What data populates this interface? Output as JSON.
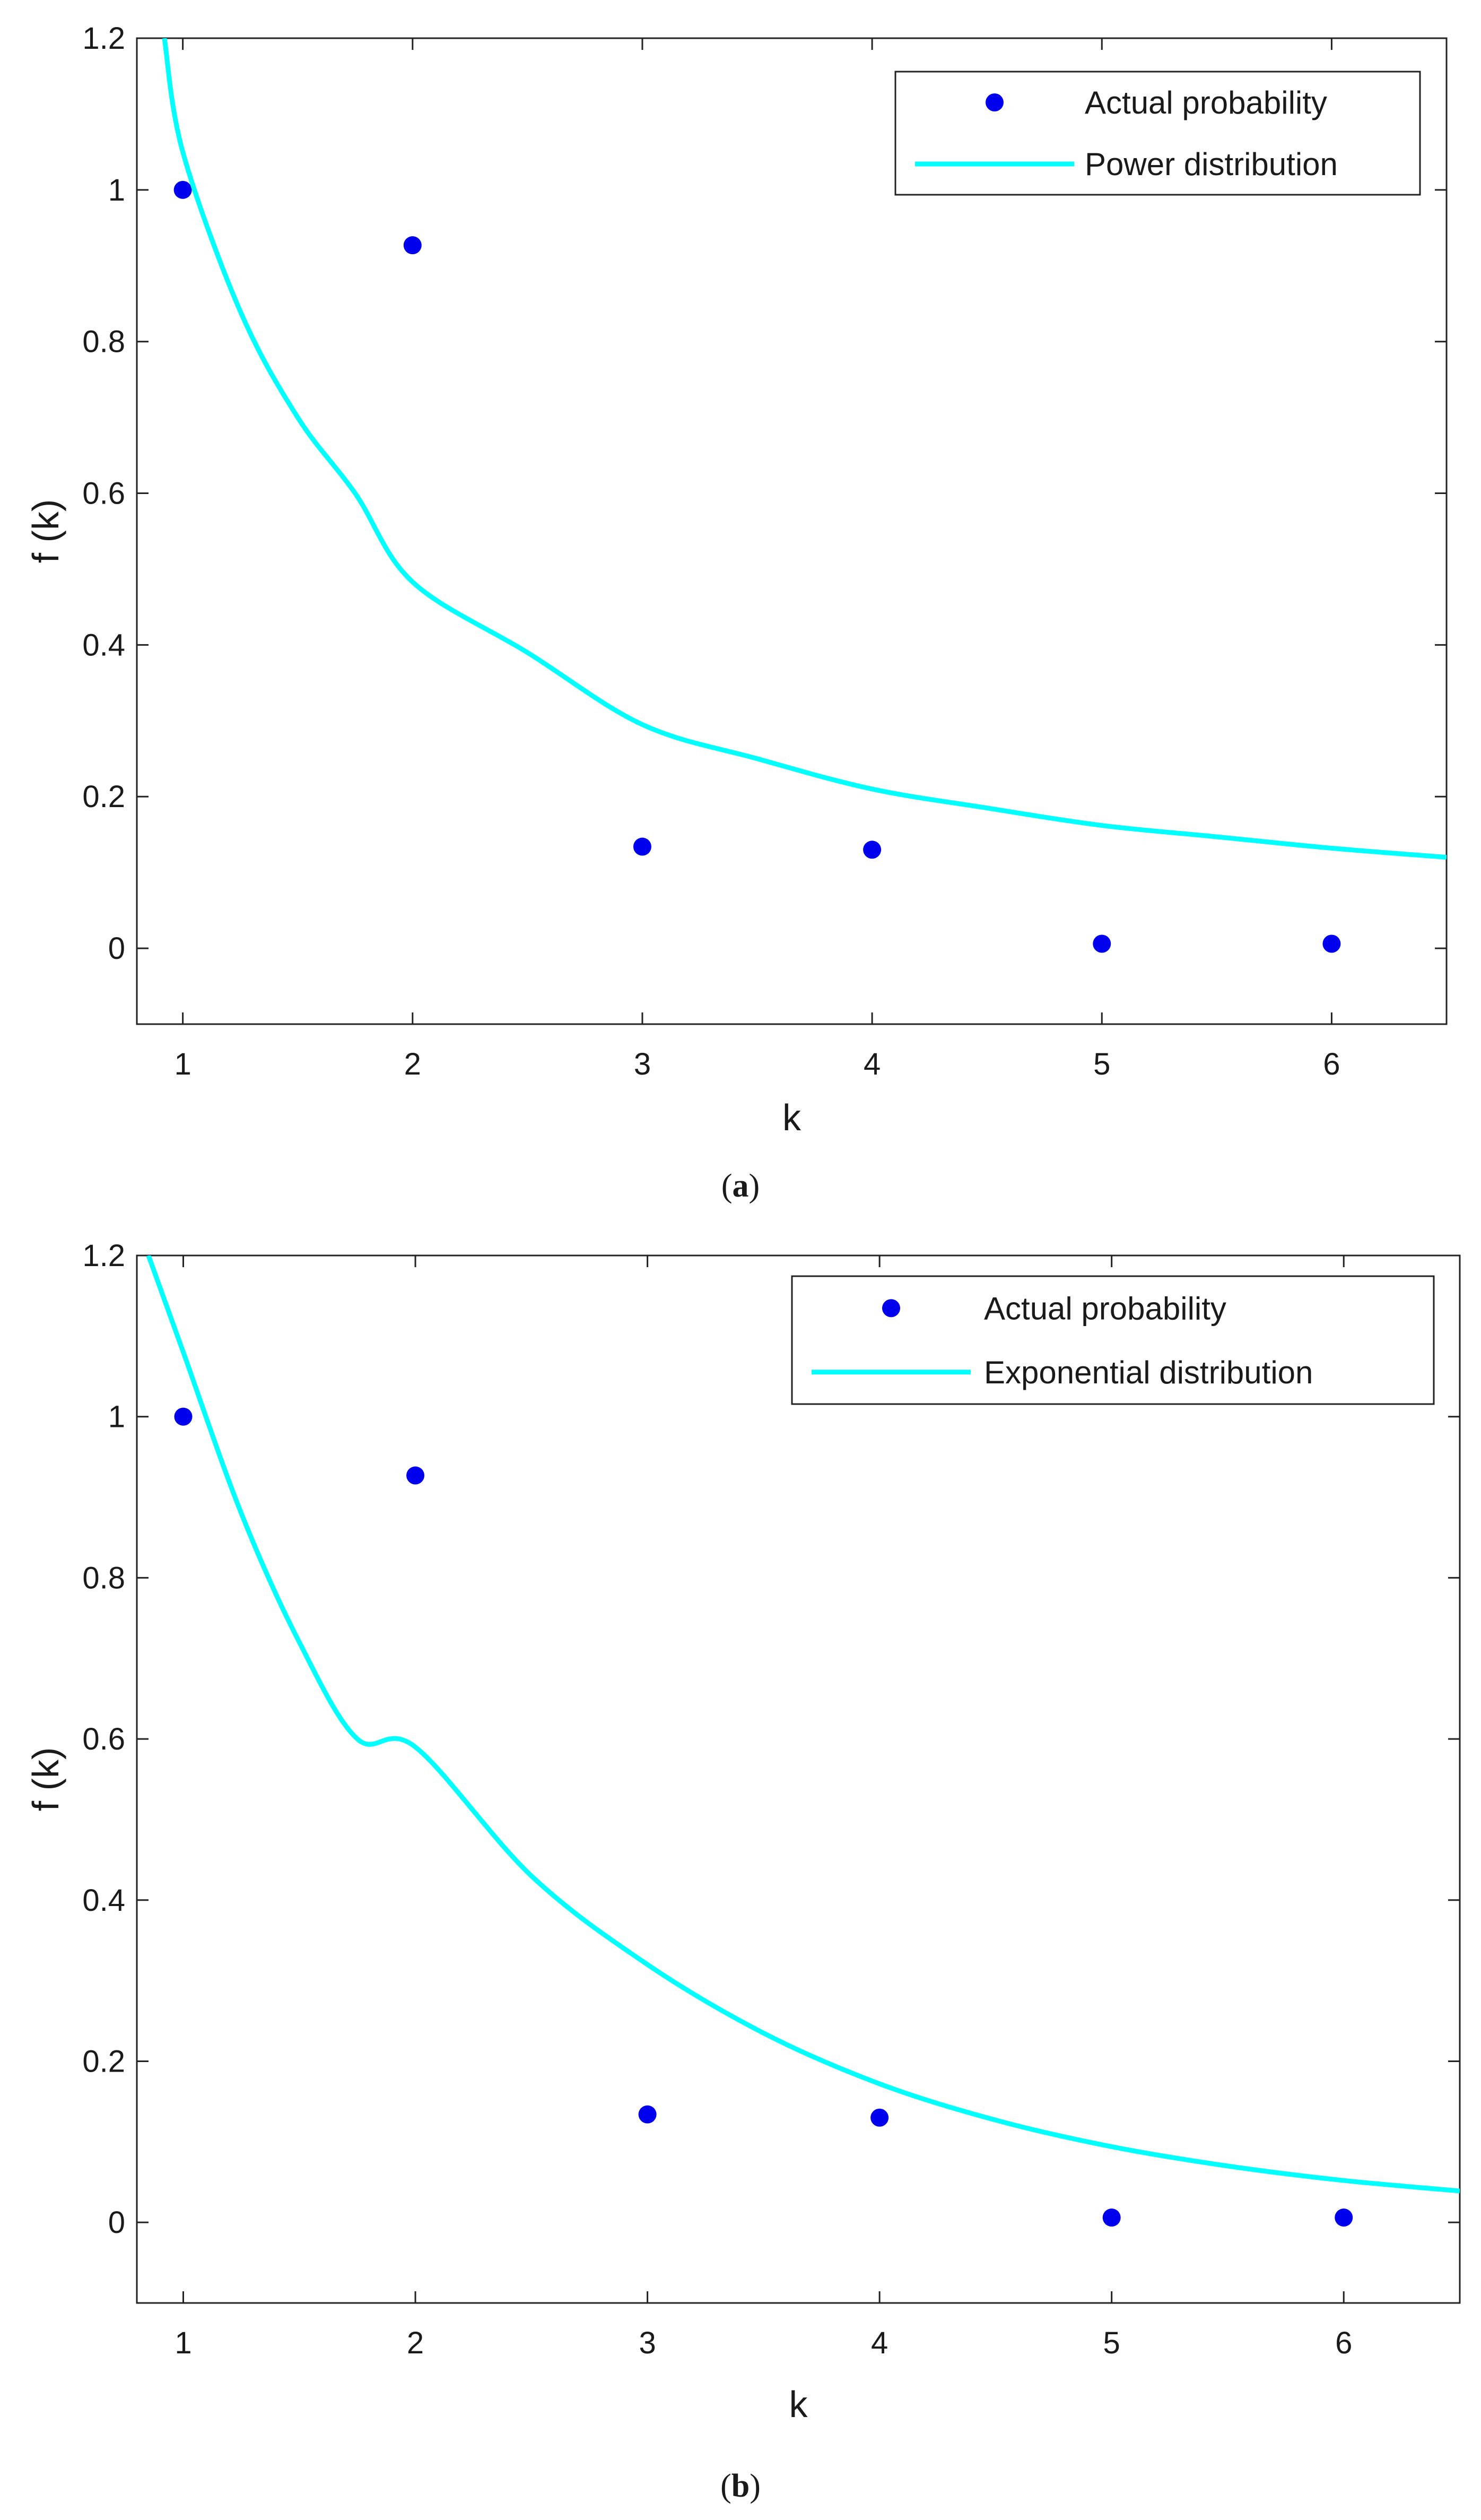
{
  "colors": {
    "points": "#0000ee",
    "curve": "#00ffff",
    "axis": "#222222",
    "text": "#1a1a1a"
  },
  "chart_data": [
    {
      "type": "scatter",
      "panel_label": "(a)",
      "panel_letter": "a",
      "xlabel": "k",
      "ylabel": "f (k)",
      "xlim": [
        0.8,
        6.5
      ],
      "ylim": [
        -0.1,
        1.2
      ],
      "xticks": [
        1,
        2,
        3,
        4,
        5,
        6
      ],
      "yticks": [
        0,
        0.2,
        0.4,
        0.6,
        0.8,
        1,
        1.2
      ],
      "legend_position": "top-right",
      "series": [
        {
          "name": "Actual probability",
          "kind": "points",
          "x": [
            1,
            2,
            3,
            4,
            5,
            6
          ],
          "y": [
            1.0,
            0.927,
            0.134,
            0.13,
            0.006,
            0.006
          ]
        },
        {
          "name": "Power distribution",
          "kind": "line",
          "x": [
            0.92,
            1,
            1.25,
            1.5,
            1.75,
            2,
            2.5,
            3,
            3.5,
            4,
            4.5,
            5,
            5.5,
            6,
            6.5
          ],
          "y": [
            1.2,
            1.05,
            0.84,
            0.7,
            0.6,
            0.483,
            0.39,
            0.295,
            0.25,
            0.21,
            0.185,
            0.162,
            0.147,
            0.132,
            0.12
          ]
        }
      ]
    },
    {
      "type": "scatter",
      "panel_label": "(b)",
      "panel_letter": "b",
      "xlabel": "k",
      "ylabel": "f (k)",
      "xlim": [
        0.8,
        6.5
      ],
      "ylim": [
        -0.1,
        1.2
      ],
      "xticks": [
        1,
        2,
        3,
        4,
        5,
        6
      ],
      "yticks": [
        0,
        0.2,
        0.4,
        0.6,
        0.8,
        1,
        1.2
      ],
      "legend_position": "top-right",
      "series": [
        {
          "name": "Actual probability",
          "kind": "points",
          "x": [
            1,
            2,
            3,
            4,
            5,
            6
          ],
          "y": [
            1.0,
            0.927,
            0.134,
            0.13,
            0.006,
            0.006
          ]
        },
        {
          "name": "Exponential distribution",
          "kind": "line",
          "x": [
            0.85,
            1,
            1.25,
            1.5,
            1.75,
            2,
            2.5,
            3,
            3.5,
            4,
            4.5,
            5,
            5.5,
            6,
            6.5
          ],
          "y": [
            1.2,
            1.08,
            0.88,
            0.72,
            0.6,
            0.59,
            0.43,
            0.32,
            0.235,
            0.172,
            0.127,
            0.094,
            0.07,
            0.052,
            0.039
          ]
        }
      ]
    }
  ]
}
